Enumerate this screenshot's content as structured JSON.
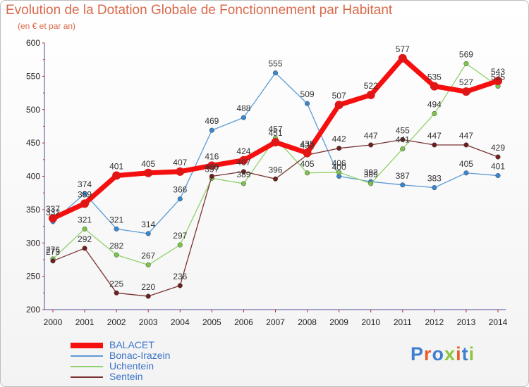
{
  "header": {
    "title": "Evolution de la Dotation Globale de Fonctionnement par Habitant",
    "subtitle": "(en € et par an)"
  },
  "logo": {
    "text": "Proxiti",
    "colors": [
      "#3f7fd0",
      "#e95d2a",
      "#3f7fd0",
      "#8cc63f",
      "#e95d2a",
      "#3f7fd0",
      "#8cc63f"
    ]
  },
  "chart_data": {
    "type": "line",
    "x": [
      2000,
      2001,
      2002,
      2003,
      2004,
      2005,
      2006,
      2007,
      2008,
      2009,
      2010,
      2011,
      2012,
      2013,
      2014
    ],
    "ylim": [
      200,
      600
    ],
    "yticks": [
      200,
      250,
      300,
      350,
      400,
      450,
      500,
      550,
      600
    ],
    "grid": false,
    "legend_position": "bottom-left",
    "series": [
      {
        "name": "Bonac-Irazein",
        "color": "#5b9bd5",
        "marker": "#3a86cf",
        "values": [
          332,
          374,
          321,
          314,
          366,
          469,
          488,
          555,
          509,
          400,
          392,
          387,
          383,
          405,
          401
        ],
        "labels": [
          "332",
          "374",
          "321",
          "314",
          "366",
          "469",
          "488",
          "555",
          "509",
          "400",
          "392",
          "387",
          "383",
          "405",
          "401"
        ]
      },
      {
        "name": "Uchentein",
        "color": "#8fd16b",
        "marker": "#7dc24b",
        "values": [
          276,
          321,
          282,
          267,
          297,
          397,
          389,
          457,
          405,
          406,
          389,
          441,
          494,
          569,
          535
        ],
        "labels": [
          "276",
          "321",
          "282",
          "267",
          "297",
          "397",
          "389",
          "457",
          "405",
          "406",
          "389",
          "441",
          "494",
          "569",
          "535"
        ]
      },
      {
        "name": "Sentein",
        "color": "#7a3232",
        "marker": "#6e1f1f",
        "values": [
          273,
          292,
          225,
          220,
          236,
          400,
          407,
          396,
          432,
          442,
          447,
          455,
          447,
          447,
          429
        ],
        "labels": [
          "273",
          "292",
          "225",
          "220",
          "236",
          "400",
          "407",
          "396",
          "432",
          "442",
          "447",
          "455",
          "447",
          "447",
          "429"
        ]
      },
      {
        "name": "BALACET",
        "color": "#f50f0f",
        "marker": "#e01515",
        "values": [
          337,
          359,
          401,
          405,
          407,
          416,
          424,
          451,
          435,
          507,
          522,
          577,
          535,
          527,
          543
        ],
        "labels": [
          "337",
          "359",
          "401",
          "405",
          "407",
          "416",
          "424",
          "451",
          "435",
          "507",
          "522",
          "577",
          "535",
          "527",
          "543"
        ]
      }
    ]
  }
}
